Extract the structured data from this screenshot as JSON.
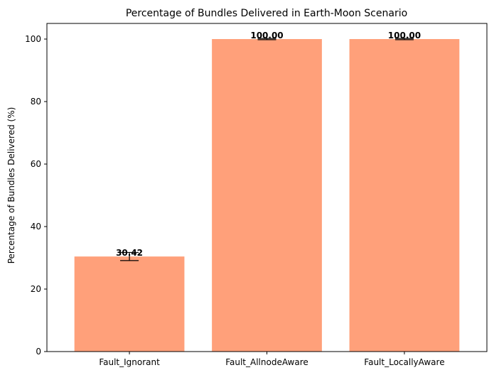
{
  "chart_data": {
    "type": "bar",
    "title": "Percentage of Bundles Delivered in Earth-Moon Scenario",
    "xlabel": "",
    "ylabel": "Percentage of Bundles Delivered (%)",
    "categories": [
      "Fault_Ignorant",
      "Fault_AllnodeAware",
      "Fault_LocallyAware"
    ],
    "values": [
      30.42,
      100.0,
      100.0
    ],
    "value_labels": [
      "30.42",
      "100.00",
      "100.00"
    ],
    "error": [
      1.3,
      0.2,
      0.2
    ],
    "ylim": [
      0,
      105
    ],
    "yticks": [
      0,
      20,
      40,
      60,
      80,
      100
    ],
    "ytick_labels": [
      "0",
      "20",
      "40",
      "60",
      "80",
      "100"
    ],
    "grid": false,
    "legend": "none",
    "colors": {
      "bar": "#ffa07a",
      "error_bar": "#000000"
    }
  }
}
